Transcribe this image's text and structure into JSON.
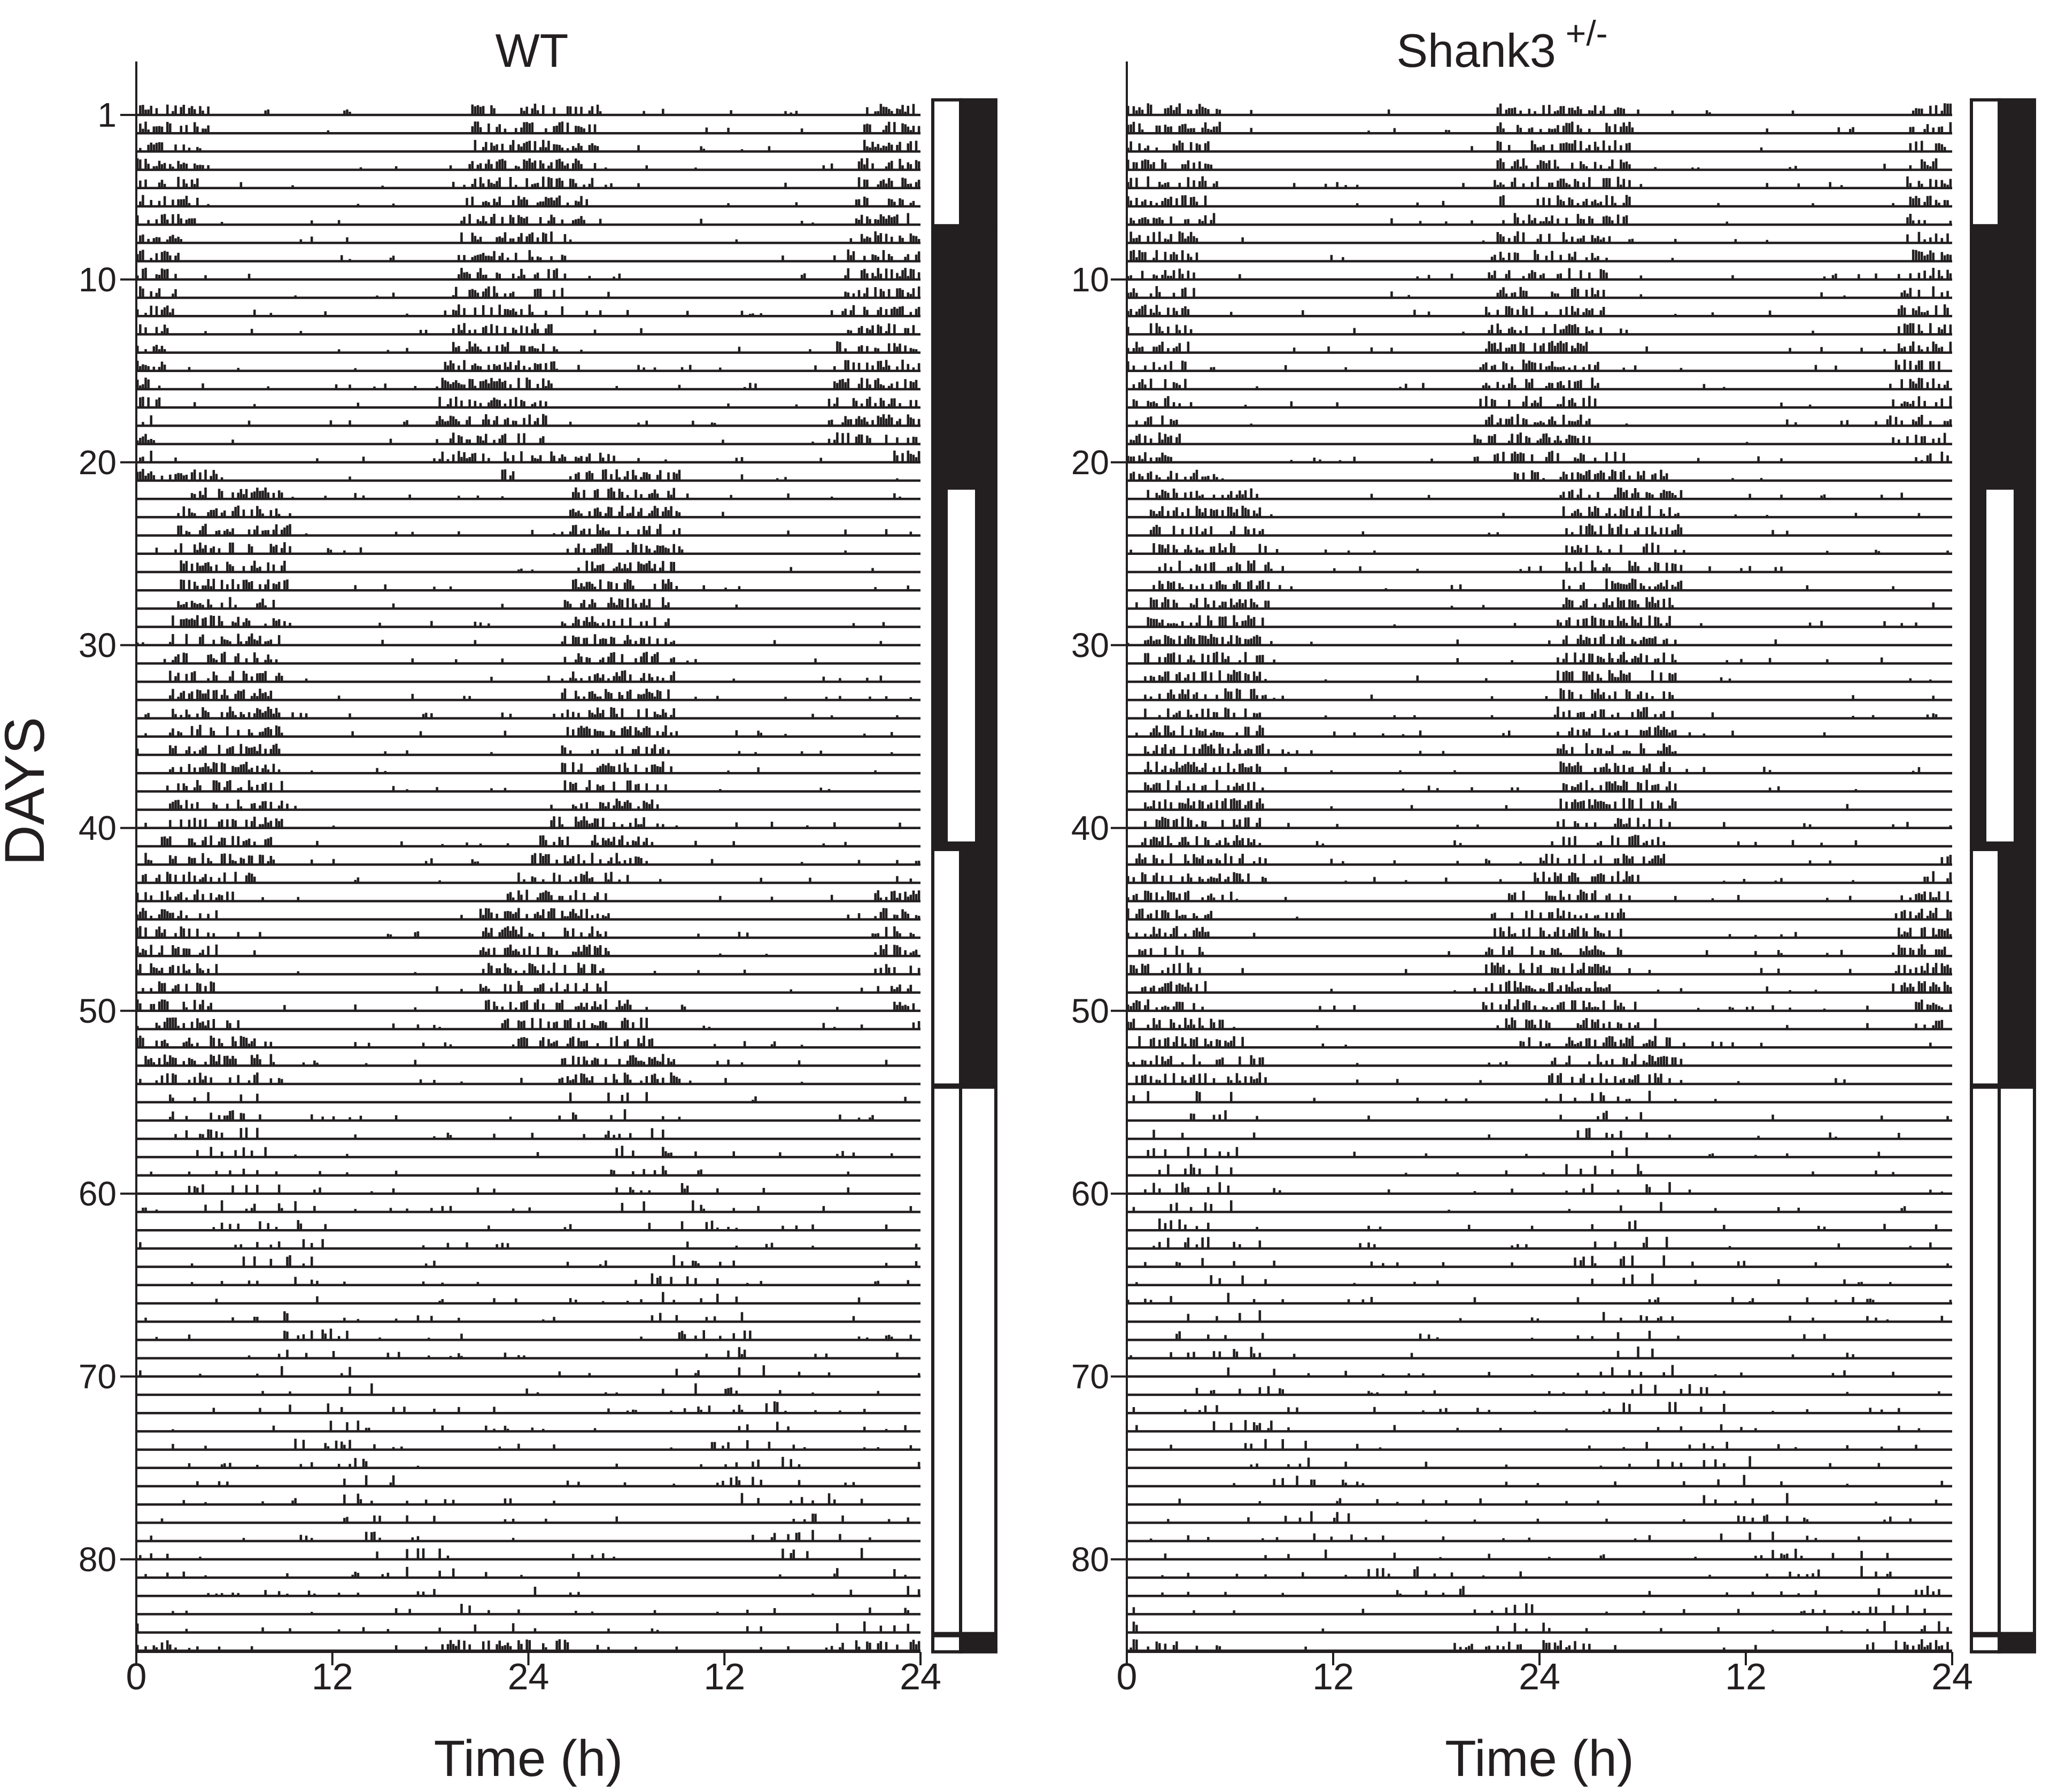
{
  "figure": {
    "y_axis_label": "DAYS",
    "foreground_color": "#231f20",
    "background_color": "#ffffff"
  },
  "chart_data": [
    {
      "type": "actogram",
      "title": "WT",
      "xlabel": "Time (h)",
      "ylabel": "DAYS",
      "x_ticks": [
        "0",
        "12",
        "24",
        "12",
        "24"
      ],
      "y_ticks": [
        "1",
        "10",
        "20",
        "30",
        "40",
        "50",
        "60",
        "70",
        "80"
      ],
      "days": 85,
      "plot": "double-plotted, 48 h per row",
      "light_schedule": [
        {
          "days": [
            1,
            7
          ],
          "condition": "LD"
        },
        {
          "days": [
            8,
            21
          ],
          "condition": "DD"
        },
        {
          "days": [
            22,
            41
          ],
          "condition": "DD"
        },
        {
          "days": [
            42,
            54
          ],
          "condition": "LD"
        },
        {
          "days": [
            55,
            84
          ],
          "condition": "LL"
        },
        {
          "days": [
            85,
            85
          ],
          "condition": "LD"
        }
      ],
      "activity_onset_hour_by_day": [
        [
          1,
          20.5
        ],
        [
          10,
          19.5
        ],
        [
          20,
          18.0
        ],
        [
          22,
          2.5
        ],
        [
          25,
          2.5
        ],
        [
          30,
          2.0
        ],
        [
          40,
          2.0
        ],
        [
          42,
          0.5
        ],
        [
          45,
          21.0
        ],
        [
          50,
          21.0
        ],
        [
          53,
          0.5
        ],
        [
          56,
          2.0
        ],
        [
          60,
          3.0
        ],
        [
          65,
          7.0
        ],
        [
          70,
          8.0
        ],
        [
          75,
          10.0
        ],
        [
          80,
          14.0
        ],
        [
          83,
          18.5
        ],
        [
          85,
          18.5
        ]
      ]
    },
    {
      "type": "actogram",
      "title": "Shank3",
      "title_superscript": "+/-",
      "xlabel": "Time (h)",
      "ylabel": "",
      "x_ticks": [
        "0",
        "12",
        "24",
        "12",
        "24"
      ],
      "y_ticks": [
        "10",
        "20",
        "30",
        "40",
        "50",
        "60",
        "70",
        "80"
      ],
      "days": 85,
      "plot": "double-plotted, 48 h per row",
      "light_schedule": [
        {
          "days": [
            1,
            7
          ],
          "condition": "LD"
        },
        {
          "days": [
            8,
            21
          ],
          "condition": "DD"
        },
        {
          "days": [
            22,
            41
          ],
          "condition": "DD"
        },
        {
          "days": [
            42,
            54
          ],
          "condition": "LD"
        },
        {
          "days": [
            55,
            84
          ],
          "condition": "LL"
        },
        {
          "days": [
            85,
            85
          ],
          "condition": "LD"
        }
      ],
      "activity_onset_hour_by_day": [
        [
          1,
          21.5
        ],
        [
          10,
          21.0
        ],
        [
          20,
          20.0
        ],
        [
          22,
          1.0
        ],
        [
          25,
          1.5
        ],
        [
          30,
          1.0
        ],
        [
          40,
          1.0
        ],
        [
          42,
          0.5
        ],
        [
          45,
          21.0
        ],
        [
          50,
          20.5
        ],
        [
          53,
          0.0
        ],
        [
          56,
          0.5
        ],
        [
          60,
          1.5
        ],
        [
          65,
          2.0
        ],
        [
          70,
          3.0
        ],
        [
          75,
          6.0
        ],
        [
          80,
          10.0
        ],
        [
          83,
          19.0
        ],
        [
          85,
          19.0
        ]
      ]
    }
  ]
}
